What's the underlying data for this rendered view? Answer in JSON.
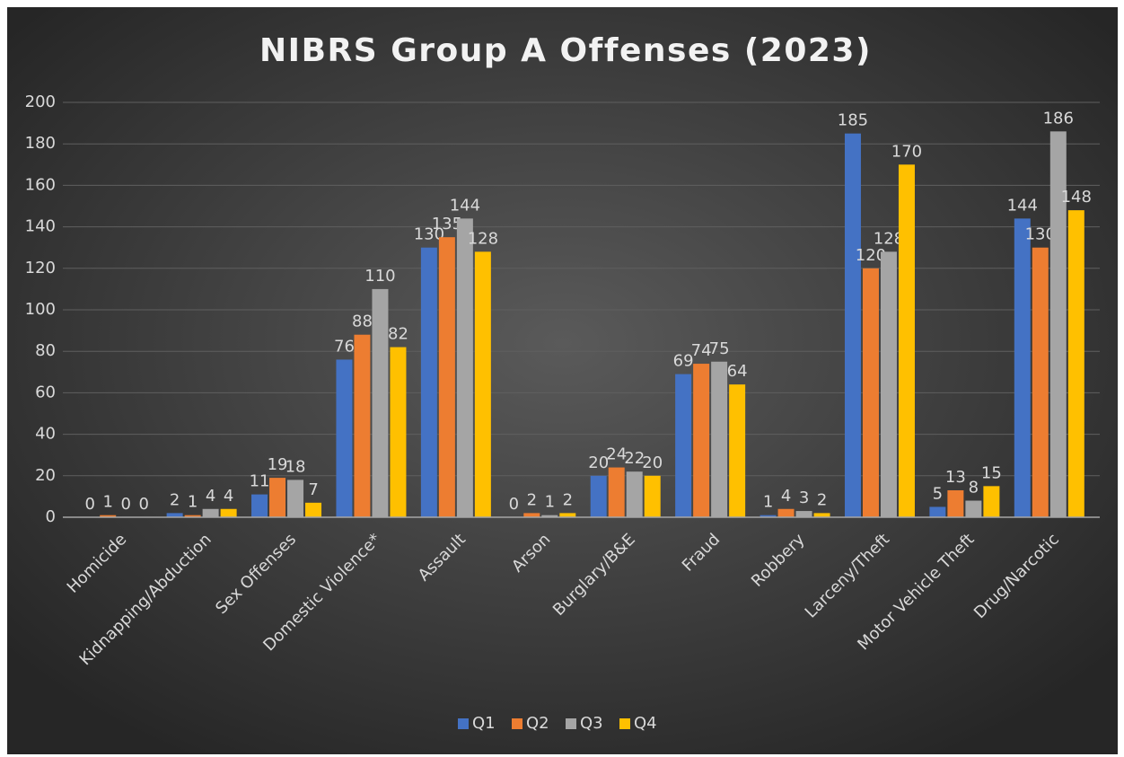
{
  "chart_data": {
    "type": "bar",
    "title": "NIBRS Group A Offenses (2023)",
    "categories": [
      "Homicide",
      "Kidnapping/Abduction",
      "Sex Offenses",
      "Domestic Violence*",
      "Assault",
      "Arson",
      "Burglary/B&E",
      "Fraud",
      "Robbery",
      "Larceny/Theft",
      "Motor Vehicle Theft",
      "Drug/Narcotic"
    ],
    "series": [
      {
        "name": "Q1",
        "color": "#4472c4",
        "values": [
          0,
          2,
          11,
          76,
          130,
          0,
          20,
          69,
          1,
          185,
          5,
          144
        ]
      },
      {
        "name": "Q2",
        "color": "#ed7d31",
        "values": [
          1,
          1,
          19,
          88,
          135,
          2,
          24,
          74,
          4,
          120,
          13,
          130
        ]
      },
      {
        "name": "Q3",
        "color": "#a5a5a5",
        "values": [
          0,
          4,
          18,
          110,
          144,
          1,
          22,
          75,
          3,
          128,
          8,
          186
        ]
      },
      {
        "name": "Q4",
        "color": "#ffc000",
        "values": [
          0,
          4,
          7,
          82,
          128,
          2,
          20,
          64,
          2,
          170,
          15,
          148
        ]
      }
    ],
    "ylim": [
      0,
      200
    ],
    "yticks": [
      0,
      20,
      40,
      60,
      80,
      100,
      120,
      140,
      160,
      180,
      200
    ],
    "grid": true,
    "legend": "bottom",
    "data_labels": true
  }
}
